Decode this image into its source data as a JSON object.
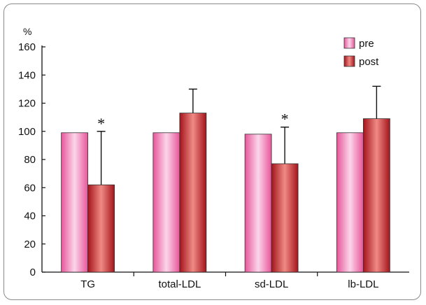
{
  "chart_data": {
    "type": "bar",
    "title": "",
    "xlabel": "",
    "ylabel": "%",
    "ylim": [
      0,
      160
    ],
    "yticks": [
      0,
      20,
      40,
      60,
      80,
      100,
      120,
      140,
      160
    ],
    "categories": [
      "TG",
      "total-LDL",
      "sd-LDL",
      "lb-LDL"
    ],
    "series": [
      {
        "name": "pre",
        "values": [
          99,
          99,
          98,
          99
        ],
        "error_up": [
          0,
          0,
          0,
          0
        ],
        "color": "#f6a3cf"
      },
      {
        "name": "post",
        "values": [
          62,
          113,
          77,
          109
        ],
        "error_up": [
          38,
          17,
          26,
          23
        ],
        "color": "#c0393a"
      }
    ],
    "significance": [
      "*",
      "",
      "*",
      ""
    ],
    "legend_position": "top-right",
    "grid": false
  }
}
